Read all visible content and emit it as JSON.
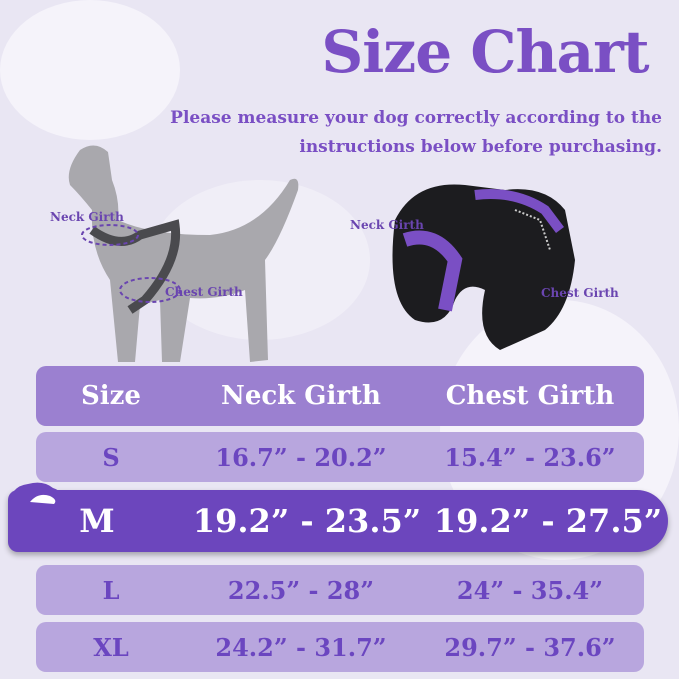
{
  "title": "Size Chart",
  "subtitle_lines": [
    "Please measure your dog correctly according to the",
    "instructions below before purchasing."
  ],
  "dog_labels": {
    "neck": "Neck Girth",
    "chest": "Chest Girth"
  },
  "harness_labels": {
    "neck": "Neck Girth",
    "chest": "Chest Girth"
  },
  "table": {
    "headers": [
      "Size",
      "Neck Girth",
      "Chest Girth"
    ],
    "rows": [
      {
        "size": "S",
        "neck": "16.7” - 20.2”",
        "chest": "15.4” - 23.6”"
      },
      {
        "size": "M",
        "neck": "19.2” - 23.5”",
        "chest": "19.2” - 27.5”",
        "highlighted": true
      },
      {
        "size": "L",
        "neck": "22.5” - 28”",
        "chest": "24” - 35.4”"
      },
      {
        "size": "XL",
        "neck": "24.2” - 31.7”",
        "chest": "29.7” - 37.6”"
      }
    ]
  },
  "colors": {
    "accent": "#7a4fc4",
    "highlight": "#6c46bd",
    "row": "#b8a6de",
    "header": "#9b80d0"
  }
}
